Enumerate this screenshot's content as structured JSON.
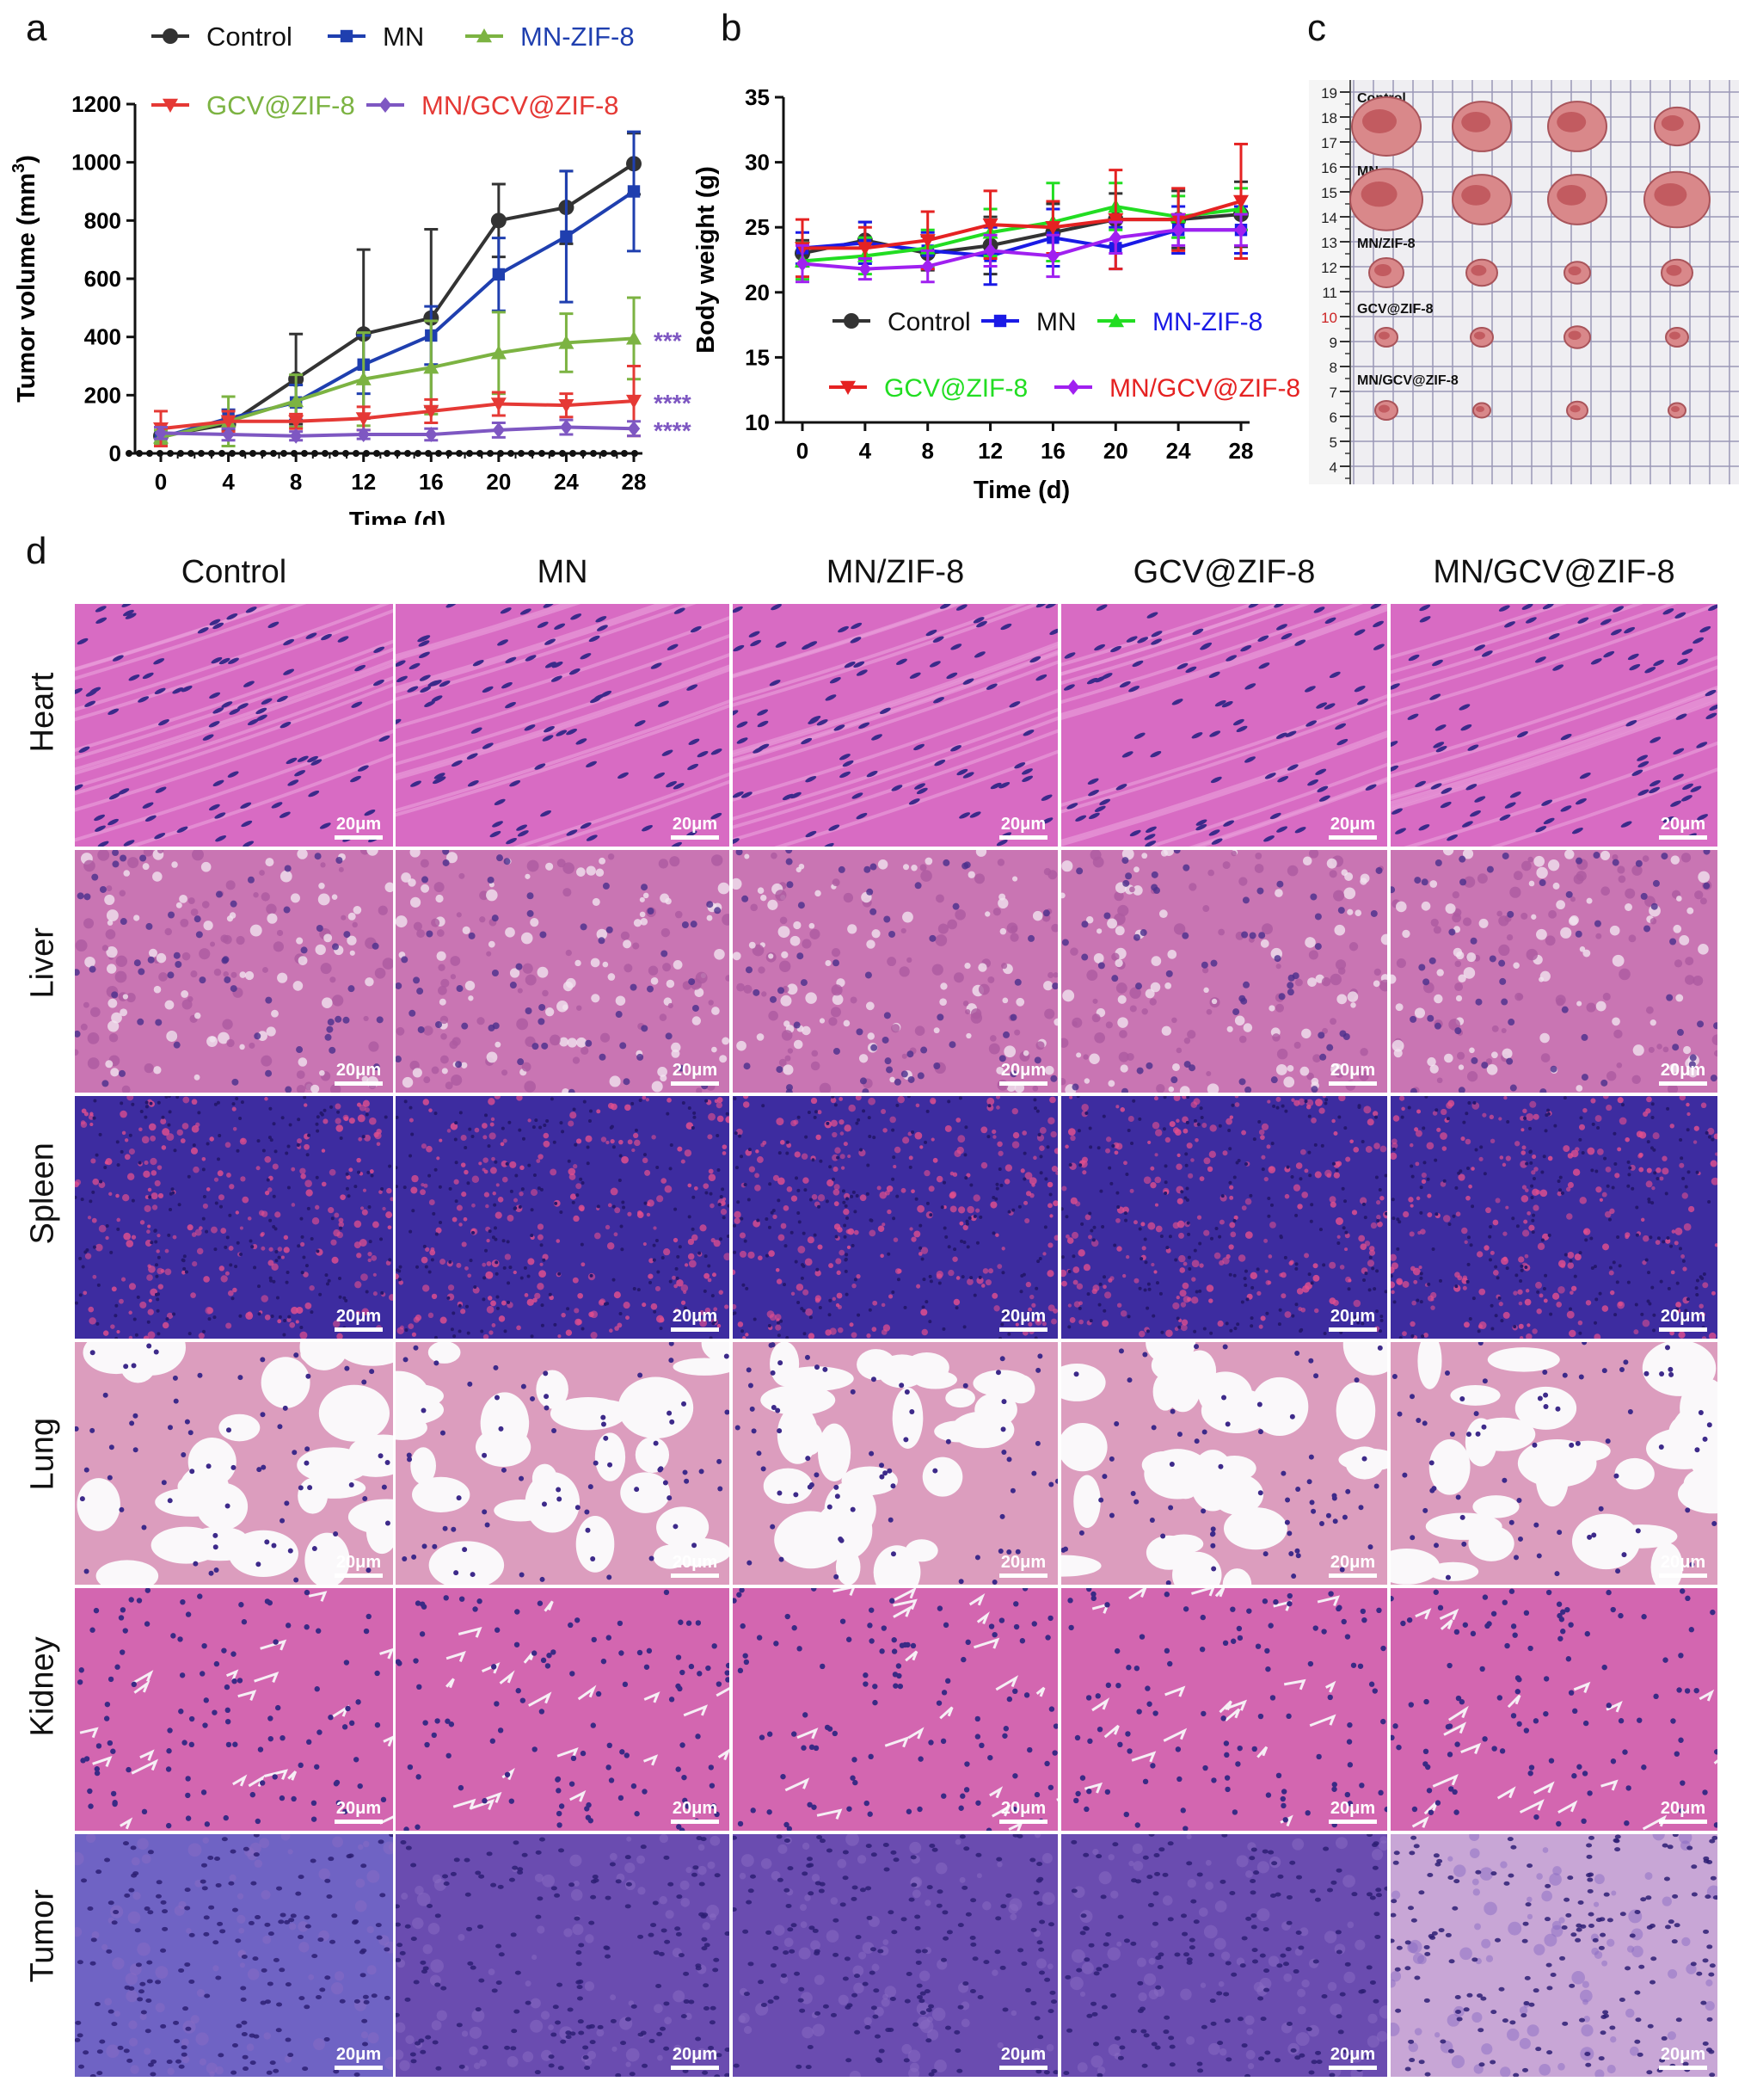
{
  "panels": {
    "a": "a",
    "b": "b",
    "c": "c",
    "d": "d"
  },
  "colors": {
    "control": "#333333",
    "mn": "#1F3FAF",
    "mn_zif8": "#7CB342",
    "gcv_zif8": "#E53935",
    "mn_gcv_zif8": "#7E57C2"
  },
  "chart_data": [
    {
      "id": "a",
      "type": "line",
      "title": "",
      "xlabel": "Time (d)",
      "ylabel_main": "Tumor volume (mm",
      "ylabel_sup": "3",
      "ylabel_close": ")",
      "x": [
        0,
        4,
        8,
        12,
        16,
        20,
        24,
        28
      ],
      "x_ticks": [
        "0",
        "4",
        "8",
        "12",
        "16",
        "20",
        "24",
        "28"
      ],
      "y_ticks": [
        "0",
        "200",
        "400",
        "600",
        "800",
        "1000",
        "1200"
      ],
      "ylim": [
        0,
        1200
      ],
      "legend": [
        {
          "label": "Control",
          "color": "#333333",
          "marker": "circle",
          "text_color": "#111111"
        },
        {
          "label": "MN",
          "color": "#1F3FAF",
          "marker": "square",
          "text_color": "#111111"
        },
        {
          "label": "MN-ZIF-8",
          "color": "#7CB342",
          "marker": "triangle-up",
          "text_color": "#1F3FAF"
        },
        {
          "label": "GCV@ZIF-8",
          "color": "#E53935",
          "marker": "triangle-down",
          "text_color": "#7CB342"
        },
        {
          "label": "MN/GCV@ZIF-8",
          "color": "#7E57C2",
          "marker": "diamond",
          "text_color": "#E53935"
        }
      ],
      "series": [
        {
          "name": "Control",
          "color": "#333333",
          "marker": "circle",
          "values": [
            60,
            100,
            255,
            410,
            465,
            800,
            845,
            995
          ],
          "errors": [
            30,
            20,
            155,
            290,
            305,
            125,
            125,
            105
          ]
        },
        {
          "name": "MN",
          "color": "#1F3FAF",
          "marker": "square",
          "values": [
            55,
            120,
            175,
            305,
            405,
            615,
            745,
            900
          ],
          "errors": [
            25,
            30,
            60,
            100,
            100,
            125,
            225,
            205
          ]
        },
        {
          "name": "MN-ZIF-8",
          "color": "#7CB342",
          "marker": "triangle-up",
          "values": [
            55,
            110,
            180,
            255,
            295,
            345,
            380,
            395
          ],
          "errors": [
            25,
            85,
            90,
            160,
            160,
            140,
            100,
            140
          ]
        },
        {
          "name": "GCV@ZIF-8",
          "color": "#E53935",
          "marker": "triangle-down",
          "values": [
            85,
            110,
            110,
            120,
            145,
            170,
            165,
            180
          ],
          "errors": [
            60,
            35,
            25,
            40,
            40,
            40,
            40,
            120
          ]
        },
        {
          "name": "MN/GCV@ZIF-8",
          "color": "#7E57C2",
          "marker": "diamond",
          "values": [
            70,
            65,
            60,
            65,
            65,
            80,
            90,
            85
          ],
          "errors": [
            20,
            20,
            15,
            15,
            20,
            25,
            25,
            25
          ]
        }
      ],
      "annotations": [
        {
          "series": "MN-ZIF-8",
          "text": "***",
          "color": "#7E57C2"
        },
        {
          "series": "GCV@ZIF-8",
          "text": "****",
          "color": "#7E57C2"
        },
        {
          "series": "MN/GCV@ZIF-8",
          "text": "****",
          "color": "#7E57C2"
        }
      ]
    },
    {
      "id": "b",
      "type": "line",
      "title": "",
      "xlabel": "Time (d)",
      "ylabel": "Body weight (g)",
      "x": [
        0,
        4,
        8,
        12,
        16,
        20,
        24,
        28
      ],
      "x_ticks": [
        "0",
        "4",
        "8",
        "12",
        "16",
        "20",
        "24",
        "28"
      ],
      "y_ticks": [
        "10",
        "15",
        "20",
        "25",
        "30",
        "35"
      ],
      "ylim": [
        10,
        35
      ],
      "legend": [
        {
          "label": "Control",
          "color": "#333333",
          "marker": "circle",
          "text_color": "#111111"
        },
        {
          "label": "MN",
          "color": "#1A1AE6",
          "marker": "square",
          "text_color": "#111111"
        },
        {
          "label": "MN-ZIF-8",
          "color": "#22DD22",
          "marker": "triangle-up",
          "text_color": "#1A1AE6"
        },
        {
          "label": "GCV@ZIF-8",
          "color": "#E52222",
          "marker": "triangle-down",
          "text_color": "#22DD22"
        },
        {
          "label": "MN/GCV@ZIF-8",
          "color": "#A020F0",
          "marker": "diamond",
          "text_color": "#E52222"
        }
      ],
      "series": [
        {
          "name": "Control",
          "color": "#333333",
          "marker": "circle",
          "values": [
            23.0,
            24.0,
            23.0,
            23.6,
            24.6,
            25.6,
            25.6,
            26.0
          ],
          "errors": [
            1.0,
            1.4,
            1.3,
            2.2,
            2.2,
            2.0,
            2.2,
            2.5
          ]
        },
        {
          "name": "MN",
          "color": "#1A1AE6",
          "marker": "square",
          "values": [
            23.4,
            23.8,
            23.2,
            22.8,
            24.2,
            23.4,
            24.8,
            24.8
          ],
          "errors": [
            1.2,
            1.6,
            1.4,
            2.2,
            2.2,
            1.6,
            1.8,
            1.8
          ]
        },
        {
          "name": "MN-ZIF-8",
          "color": "#22DD22",
          "marker": "triangle-up",
          "values": [
            22.4,
            22.8,
            23.4,
            24.6,
            25.4,
            26.6,
            25.8,
            26.4
          ],
          "errors": [
            1.4,
            1.4,
            1.4,
            1.8,
            3.0,
            1.8,
            1.6,
            1.6
          ]
        },
        {
          "name": "GCV@ZIF-8",
          "color": "#E52222",
          "marker": "triangle-down",
          "values": [
            23.4,
            23.4,
            24.0,
            25.2,
            25.0,
            25.6,
            25.6,
            27.0
          ],
          "errors": [
            2.2,
            1.6,
            2.2,
            2.6,
            2.0,
            3.8,
            2.4,
            4.4
          ]
        },
        {
          "name": "MN/GCV@ZIF-8",
          "color": "#A020F0",
          "marker": "diamond",
          "values": [
            22.2,
            21.8,
            22.0,
            23.2,
            22.8,
            24.2,
            24.8,
            24.8
          ],
          "errors": [
            1.4,
            0.8,
            1.2,
            1.2,
            1.6,
            1.2,
            1.2,
            1.2
          ]
        }
      ]
    }
  ],
  "panel_c": {
    "ruler_numbers": [
      "19",
      "18",
      "17",
      "16",
      "15",
      "14",
      "13",
      "12",
      "11",
      "10",
      "9",
      "8",
      "7",
      "6",
      "5",
      "4"
    ],
    "groups": [
      {
        "label": "Control",
        "count": 4
      },
      {
        "label": "MN",
        "count": 4
      },
      {
        "label": "MN/ZIF-8",
        "count": 4
      },
      {
        "label": "GCV@ZIF-8",
        "count": 4
      },
      {
        "label": "MN/GCV@ZIF-8",
        "count": 4
      }
    ]
  },
  "panel_d": {
    "columns": [
      "Control",
      "MN",
      "MN/ZIF-8",
      "GCV@ZIF-8",
      "MN/GCV@ZIF-8"
    ],
    "rows": [
      "Heart",
      "Liver",
      "Spleen",
      "Lung",
      "Kidney",
      "Tumor"
    ],
    "scale_bar": "20μm"
  }
}
